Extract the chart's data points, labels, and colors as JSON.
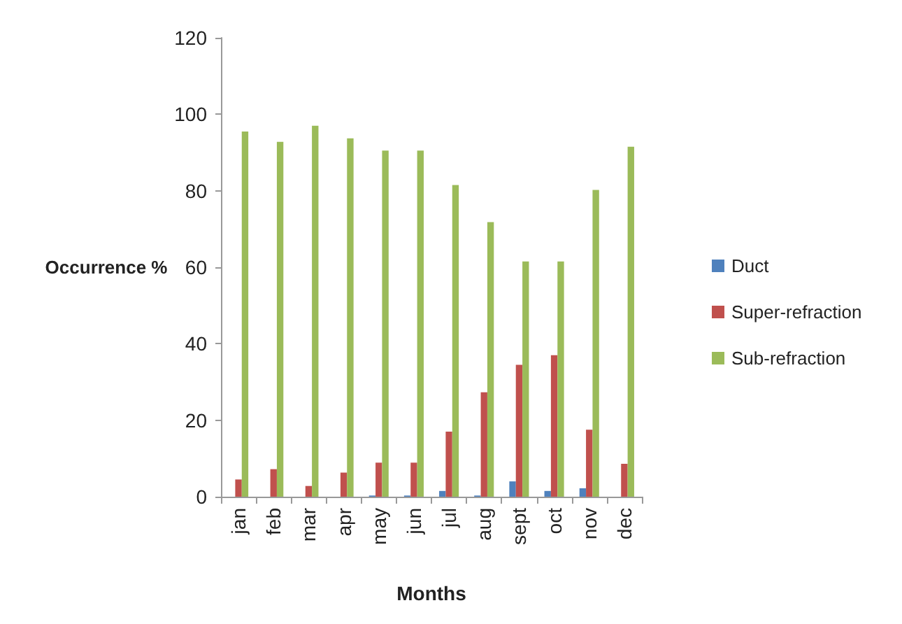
{
  "chart_data": {
    "type": "bar",
    "xlabel": "Months",
    "ylabel": "Occurrence %",
    "categories": [
      "jan",
      "feb",
      "mar",
      "apr",
      "may",
      "jun",
      "jul",
      "aug",
      "sept",
      "oct",
      "nov",
      "dec"
    ],
    "series": [
      {
        "name": "Duct",
        "color": "#4f81bd",
        "values": [
          0,
          0,
          0,
          0,
          0.3,
          0.3,
          1.5,
          0.3,
          4,
          1.5,
          2.2,
          0
        ]
      },
      {
        "name": "Super-refraction",
        "color": "#c0504d",
        "values": [
          4.5,
          7.2,
          2.8,
          6.3,
          8.9,
          8.9,
          17,
          27.3,
          34.5,
          37,
          17.5,
          8.6
        ]
      },
      {
        "name": "Sub-refraction",
        "color": "#9bbb59",
        "values": [
          95.5,
          92.8,
          97,
          93.7,
          90.5,
          90.5,
          81.5,
          71.8,
          61.5,
          61.5,
          80.2,
          91.5
        ]
      }
    ],
    "ylim": [
      0,
      120
    ],
    "yticks": [
      0,
      20,
      40,
      60,
      80,
      100,
      120
    ],
    "grid": false,
    "legend": "right"
  }
}
